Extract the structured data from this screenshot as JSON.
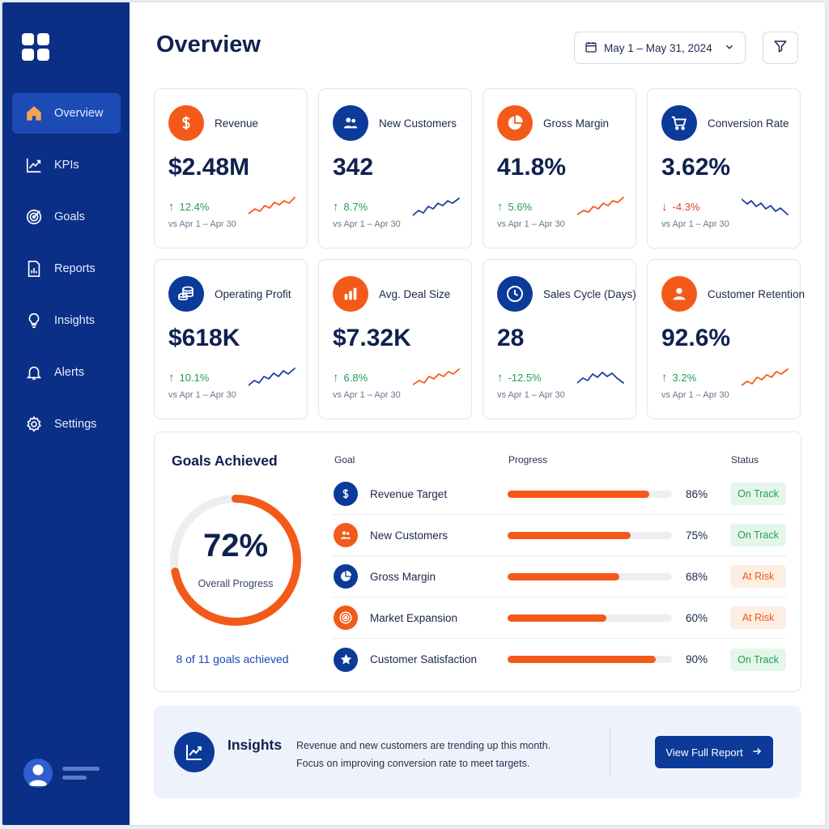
{
  "sidebar": {
    "items": [
      {
        "label": "Overview",
        "icon": "home-icon",
        "active": true
      },
      {
        "label": "KPIs",
        "icon": "trend-icon",
        "active": false
      },
      {
        "label": "Goals",
        "icon": "target-icon",
        "active": false
      },
      {
        "label": "Reports",
        "icon": "report-icon",
        "active": false
      },
      {
        "label": "Insights",
        "icon": "lightbulb-icon",
        "active": false
      },
      {
        "label": "Alerts",
        "icon": "bell-icon",
        "active": false
      },
      {
        "label": "Settings",
        "icon": "gear-icon",
        "active": false
      }
    ]
  },
  "header": {
    "title": "Overview",
    "date_range": "May 1 – May 31, 2024"
  },
  "kpis": [
    {
      "label": "Revenue",
      "value": "$2.48M",
      "delta": "12.4%",
      "direction": "up",
      "compare": "vs Apr 1 – Apr 30",
      "icon": "dollar-icon",
      "icon_color": "orange",
      "spark_color": "#f35a1a"
    },
    {
      "label": "New Customers",
      "value": "342",
      "delta": "8.7%",
      "direction": "up",
      "compare": "vs Apr 1 – Apr 30",
      "icon": "users-icon",
      "icon_color": "blue",
      "spark_color": "#1a3fa0"
    },
    {
      "label": "Gross Margin",
      "value": "41.8%",
      "delta": "5.6%",
      "direction": "up",
      "compare": "vs Apr 1 – Apr 30",
      "icon": "pie-chart-icon",
      "icon_color": "orange",
      "spark_color": "#f35a1a"
    },
    {
      "label": "Conversion Rate",
      "value": "3.62%",
      "delta": "-4.3%",
      "direction": "down",
      "compare": "vs Apr 1 – Apr 30",
      "icon": "cart-icon",
      "icon_color": "blue",
      "spark_color": "#1a3fa0"
    },
    {
      "label": "Operating Profit",
      "value": "$618K",
      "delta": "10.1%",
      "direction": "up",
      "compare": "vs Apr 1 – Apr 30",
      "icon": "coins-icon",
      "icon_color": "blue",
      "spark_color": "#1a3fa0"
    },
    {
      "label": "Avg. Deal Size",
      "value": "$7.32K",
      "delta": "6.8%",
      "direction": "up",
      "compare": "vs Apr 1 – Apr 30",
      "icon": "bar-chart-icon",
      "icon_color": "orange",
      "spark_color": "#f35a1a"
    },
    {
      "label": "Sales Cycle (Days)",
      "value": "28",
      "delta": "-12.5%",
      "direction": "up",
      "compare": "vs Apr 1 – Apr 30",
      "icon": "clock-icon",
      "icon_color": "blue",
      "spark_color": "#1a3fa0"
    },
    {
      "label": "Customer Retention",
      "value": "92.6%",
      "delta": "3.2%",
      "direction": "up",
      "compare": "vs Apr 1 – Apr 30",
      "icon": "person-icon",
      "icon_color": "orange",
      "spark_color": "#f35a1a"
    }
  ],
  "goals": {
    "title": "Goals Achieved",
    "overall_pct": "72%",
    "overall_value": 0.72,
    "overall_label": "Overall Progress",
    "summary": "8 of 11 goals achieved",
    "headers": {
      "goal": "Goal",
      "progress": "Progress",
      "status": "Status"
    },
    "rows": [
      {
        "name": "Revenue Target",
        "pct_label": "86%",
        "pct": 86,
        "status": "On Track",
        "state": "ok",
        "icon": "dollar-icon",
        "icon_color": "#0b3a99"
      },
      {
        "name": "New Customers",
        "pct_label": "75%",
        "pct": 75,
        "status": "On Track",
        "state": "ok",
        "icon": "users-icon",
        "icon_color": "#f35a1a"
      },
      {
        "name": "Gross Margin",
        "pct_label": "68%",
        "pct": 68,
        "status": "At Risk",
        "state": "risk",
        "icon": "pie-chart-icon",
        "icon_color": "#0b3a99"
      },
      {
        "name": "Market Expansion",
        "pct_label": "60%",
        "pct": 60,
        "status": "At Risk",
        "state": "risk",
        "icon": "target-icon",
        "icon_color": "#f35a1a"
      },
      {
        "name": "Customer Satisfaction",
        "pct_label": "90%",
        "pct": 90,
        "status": "On Track",
        "state": "ok",
        "icon": "star-icon",
        "icon_color": "#0b3a99"
      }
    ]
  },
  "insights": {
    "title": "Insights",
    "line1": "Revenue and new customers are trending up this month.",
    "line2": "Focus on improving conversion rate to meet targets.",
    "button": "View Full Report"
  },
  "colors": {
    "sidebar": "#0b2f86",
    "accent_orange": "#f35a1a",
    "accent_blue": "#0b3a99",
    "positive": "#1f9d55",
    "negative": "#e2432a"
  }
}
